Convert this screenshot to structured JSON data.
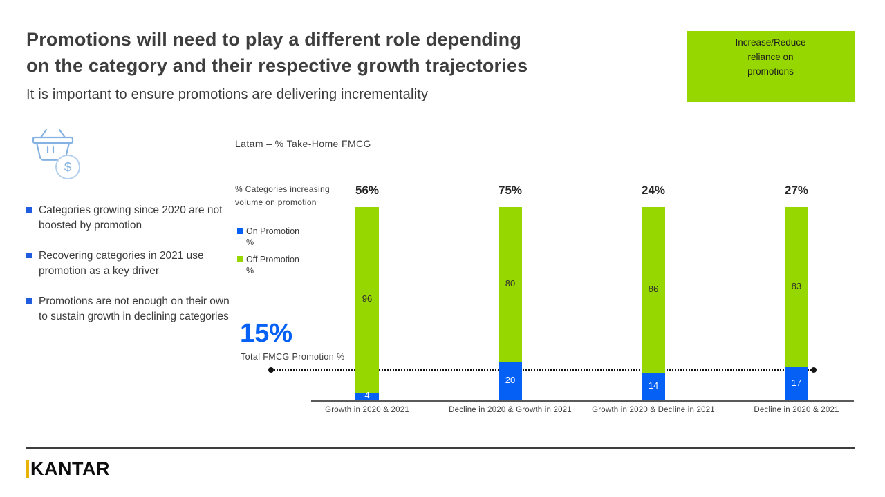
{
  "slide": {
    "title_line1": "Promotions will need to play a different role depending",
    "title_line2": "on the category and their respective growth trajectories",
    "subtitle": "It is important to ensure promotions are delivering incrementality",
    "callout": "Increase/Reduce reliance on promotions",
    "logo": "KANTAR"
  },
  "insights": {
    "items": [
      "Categories growing since 2020 are not boosted by promotion",
      "Recovering categories in 2021 use promotion as a key driver",
      "Promotions are not enough on their own to sustain growth in declining categories"
    ]
  },
  "chart_data": {
    "type": "bar",
    "stacked": true,
    "percent_stacked": true,
    "title": "Latam – % Take-Home FMCG",
    "categories": [
      "Growth in 2020 & 2021",
      "Decline in 2020 & Growth in 2021",
      "Growth in 2020 & Decline in 2021",
      "Decline in 2020 & 2021"
    ],
    "series": [
      {
        "name": "On Promotion %",
        "color": "#0561f5",
        "values": [
          4,
          20,
          14,
          17
        ]
      },
      {
        "name": "Off Promotion %",
        "color": "#97d700",
        "values": [
          96,
          80,
          86,
          83
        ]
      }
    ],
    "top_labels_caption": "% Categories increasing volume on promotion",
    "top_labels": [
      "56%",
      "75%",
      "24%",
      "27%"
    ],
    "reference_line": {
      "value": 15,
      "label": "15%",
      "caption": "Total FMCG Promotion %"
    },
    "ylim": [
      0,
      100
    ],
    "grid": false,
    "legend_position": "left"
  },
  "colors": {
    "green": "#97d700",
    "blue": "#0561f5",
    "bullet_blue": "#1f5ce0",
    "title_text": "#3e3e3e"
  }
}
